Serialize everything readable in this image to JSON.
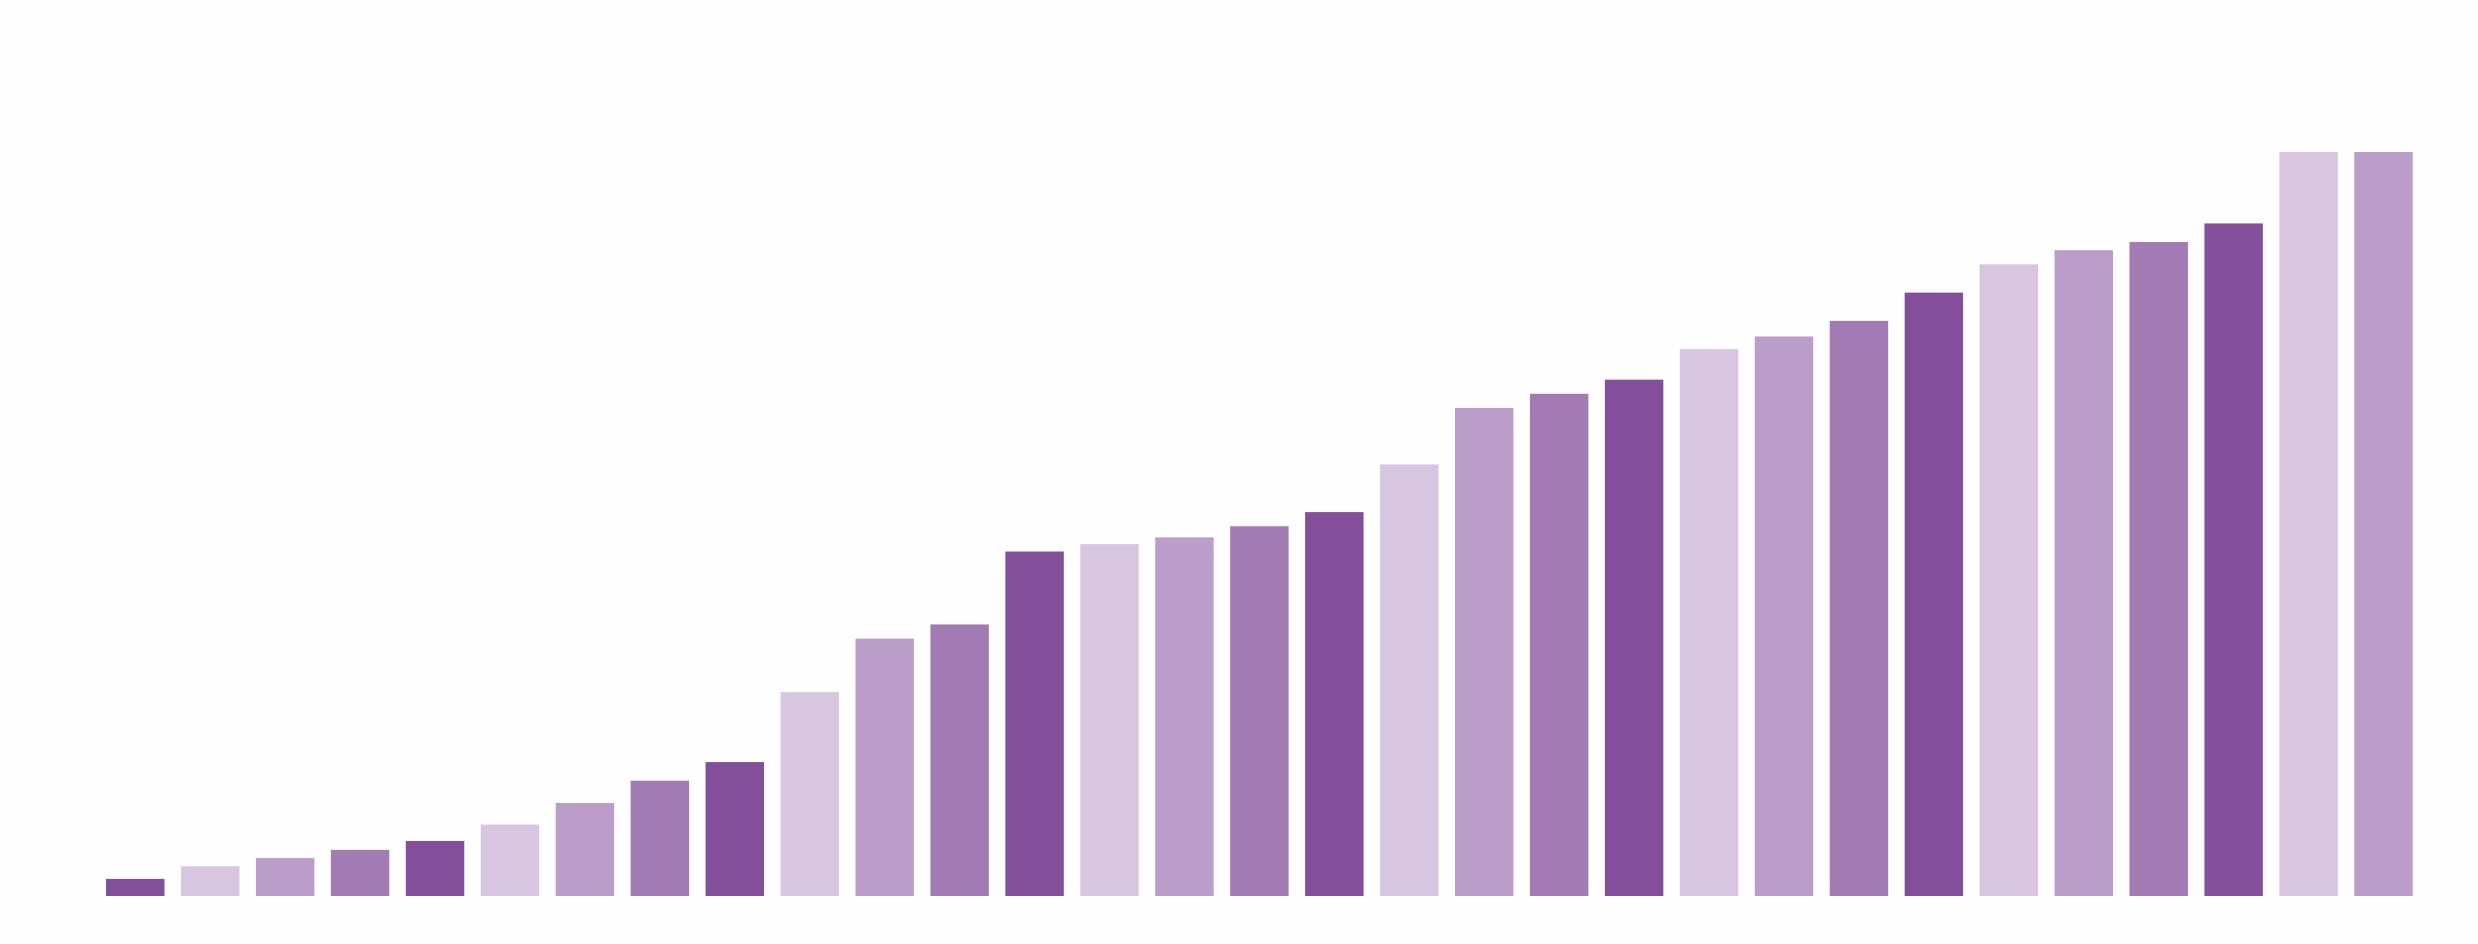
{
  "chart_data": {
    "type": "bar",
    "categories": [
      null,
      null,
      null,
      null,
      null,
      null,
      null,
      null,
      null,
      null,
      null,
      null,
      null,
      null,
      null,
      null,
      null,
      null,
      null,
      null,
      null,
      null,
      null,
      null,
      null,
      null,
      null,
      null,
      null,
      null,
      null
    ],
    "values": [
      2.3,
      4.0,
      5.1,
      6.2,
      7.4,
      9.6,
      12.5,
      15.5,
      18.0,
      27.4,
      34.6,
      36.5,
      46.3,
      47.3,
      48.2,
      49.7,
      51.6,
      58.0,
      65.6,
      67.5,
      69.4,
      73.5,
      75.2,
      77.3,
      81.1,
      84.9,
      86.8,
      87.9,
      90.4,
      100,
      100
    ],
    "colors": [
      "#834f9b",
      "#d8c6e0",
      "#bb9dca",
      "#a27bb5"
    ],
    "ylim": [
      0,
      100
    ],
    "grid": false
  }
}
